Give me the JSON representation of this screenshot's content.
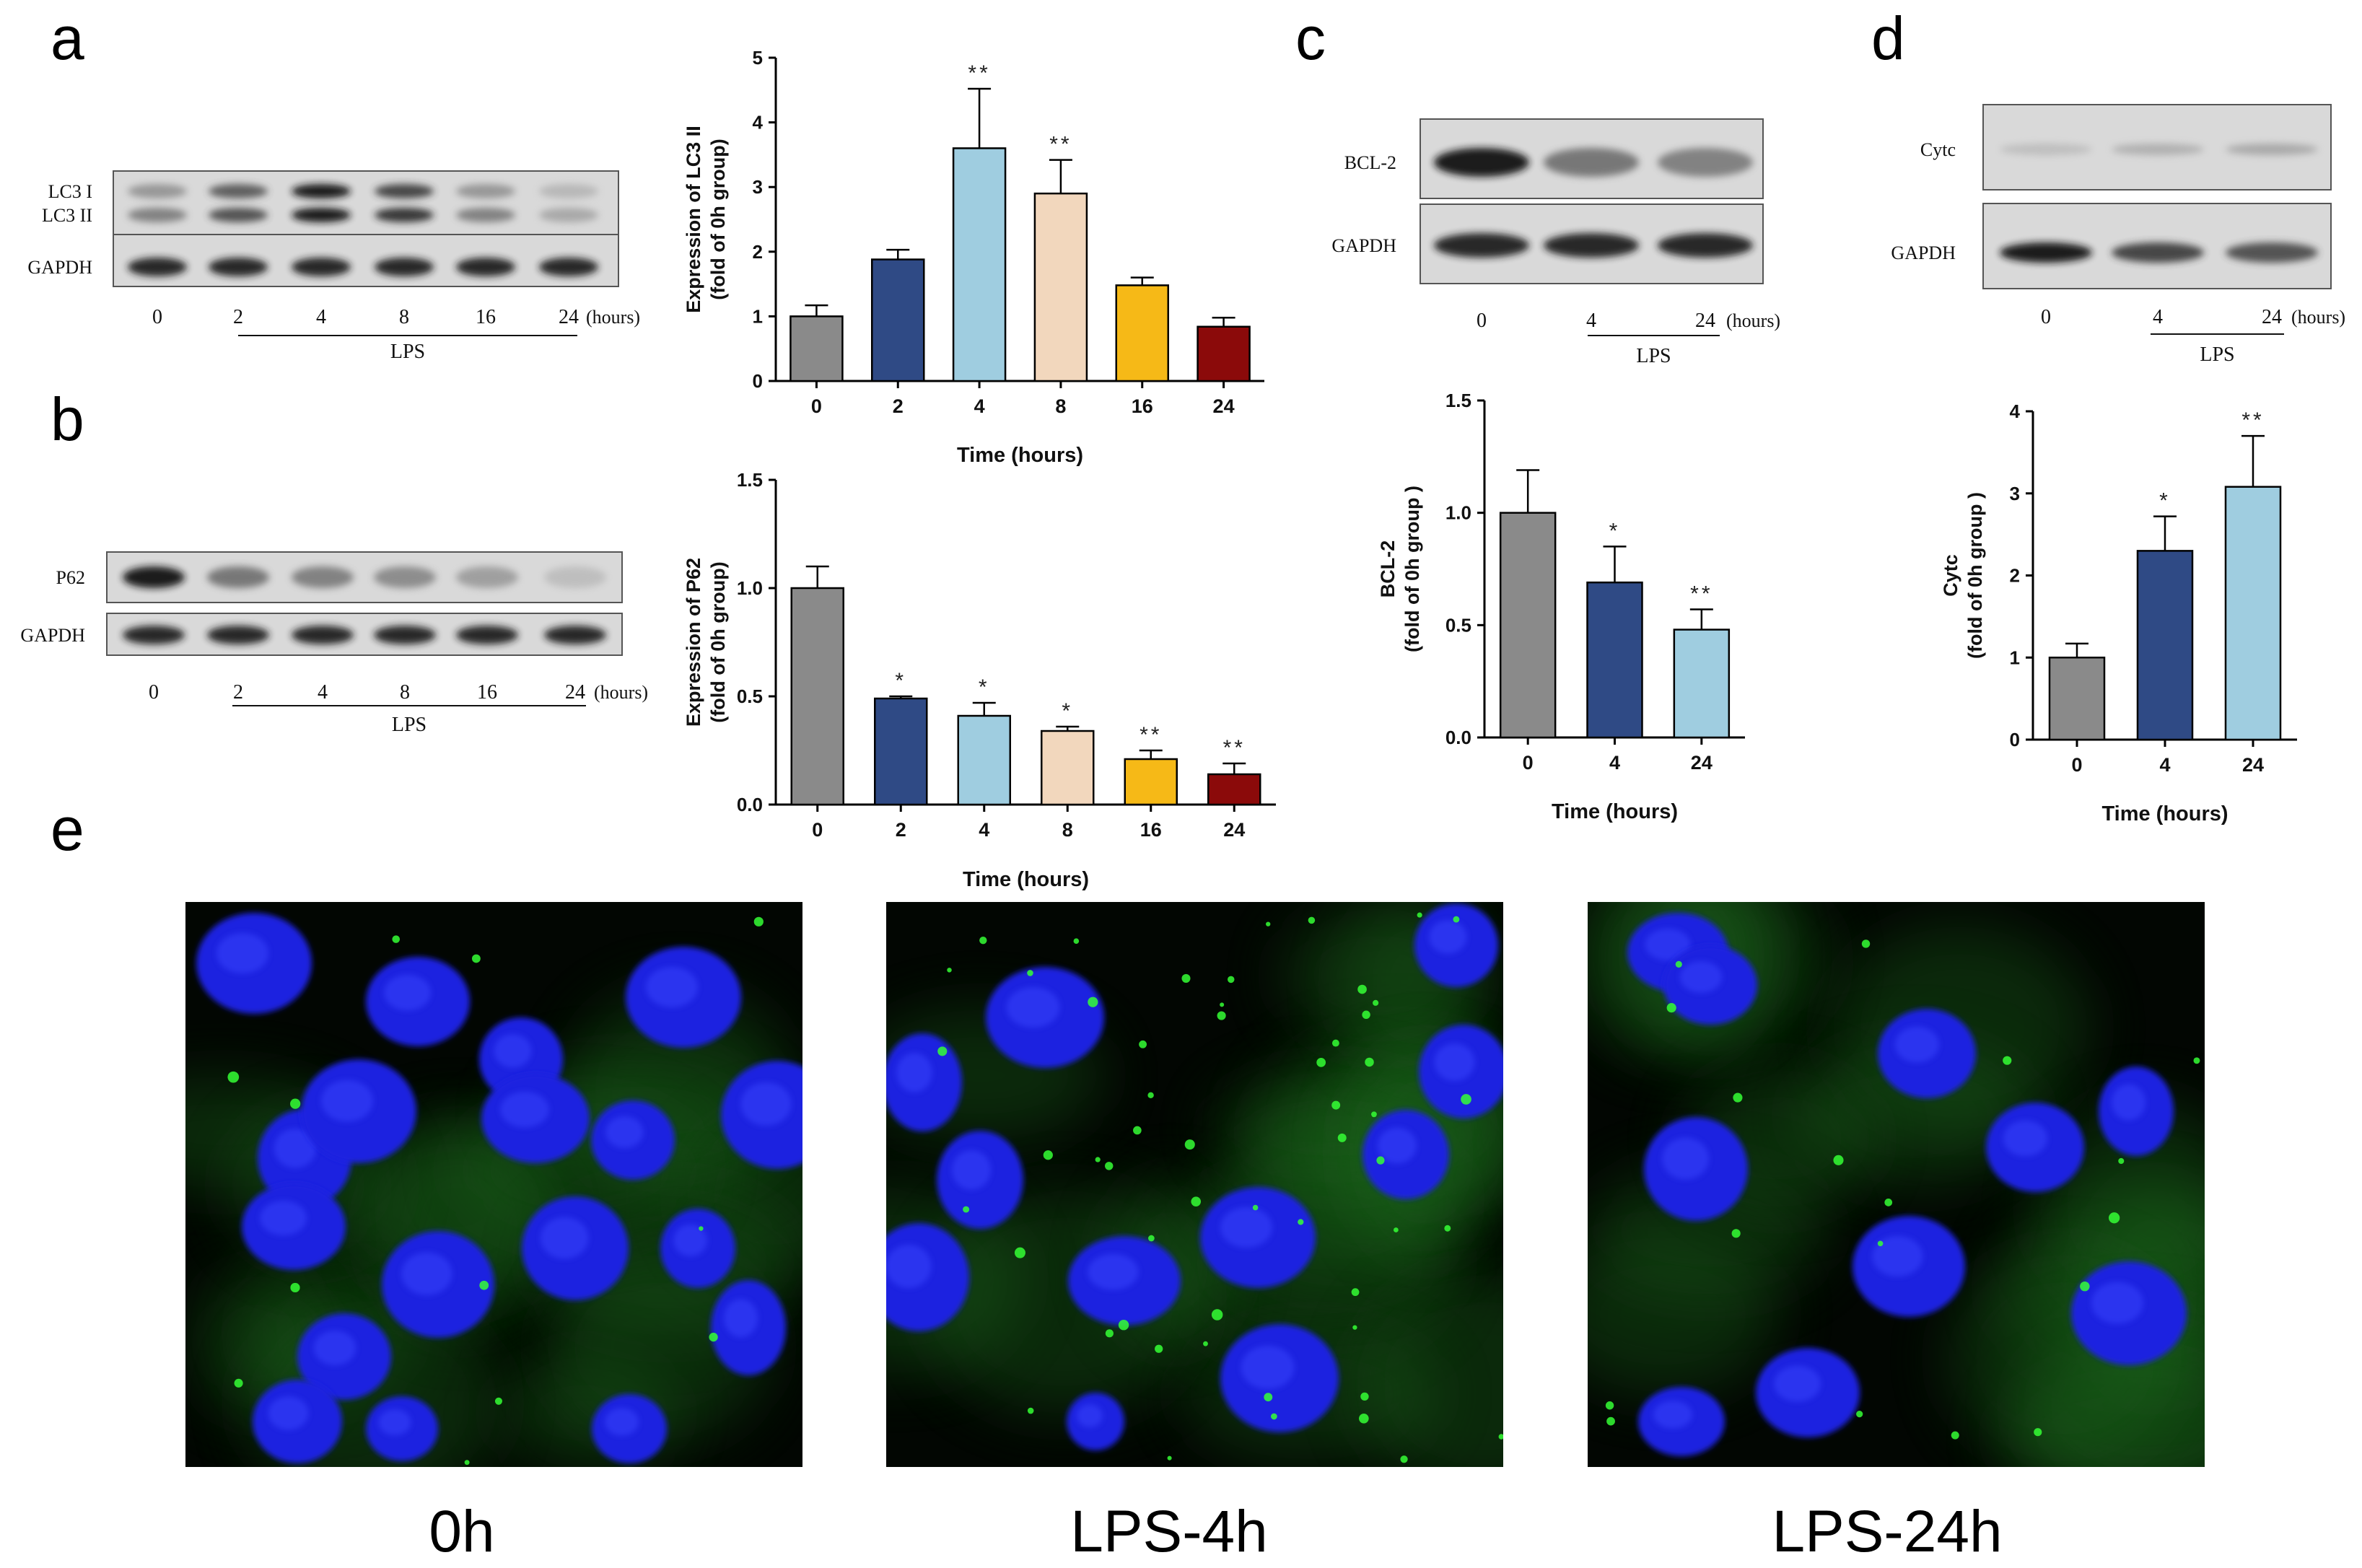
{
  "panels": {
    "a": {
      "letter": "a",
      "blot": {
        "bands": [
          "LC3 I",
          "LC3 II",
          "GAPDH"
        ],
        "lanes": [
          "0",
          "2",
          "4",
          "8",
          "16",
          "24"
        ],
        "unit": "(hours)",
        "treatment": "LPS",
        "band_intensity": {
          "LC3 I": [
            0.45,
            0.7,
            0.95,
            0.8,
            0.45,
            0.25
          ],
          "LC3 II": [
            0.55,
            0.75,
            0.95,
            0.85,
            0.55,
            0.35
          ],
          "GAPDH": [
            0.9,
            0.9,
            0.9,
            0.9,
            0.9,
            0.9
          ]
        }
      }
    },
    "b": {
      "letter": "b",
      "blot": {
        "bands": [
          "P62",
          "GAPDH"
        ],
        "lanes": [
          "0",
          "2",
          "4",
          "8",
          "16",
          "24"
        ],
        "unit": "(hours)",
        "treatment": "LPS",
        "band_intensity": {
          "P62": [
            0.95,
            0.6,
            0.55,
            0.5,
            0.4,
            0.2
          ],
          "GAPDH": [
            0.9,
            0.9,
            0.9,
            0.9,
            0.9,
            0.9
          ]
        }
      }
    },
    "c": {
      "letter": "c",
      "blot": {
        "bands": [
          "BCL-2",
          "GAPDH"
        ],
        "lanes": [
          "0",
          "4",
          "24"
        ],
        "unit": "(hours)",
        "treatment": "LPS",
        "band_intensity": {
          "BCL-2": [
            0.95,
            0.6,
            0.55
          ],
          "GAPDH": [
            0.9,
            0.9,
            0.9
          ]
        }
      }
    },
    "d": {
      "letter": "d",
      "blot": {
        "bands": [
          "Cytc",
          "GAPDH"
        ],
        "lanes": [
          "0",
          "4",
          "24"
        ],
        "unit": "(hours)",
        "treatment": "LPS",
        "band_intensity": {
          "Cytc": [
            0.2,
            0.3,
            0.35
          ],
          "GAPDH": [
            0.95,
            0.8,
            0.75
          ]
        }
      }
    },
    "e": {
      "letter": "e",
      "images": [
        {
          "label": "0h"
        },
        {
          "label": "LPS-4h"
        },
        {
          "label": "LPS-24h"
        }
      ]
    }
  },
  "chart_data": [
    {
      "id": "lc3",
      "type": "bar",
      "categories": [
        "0",
        "2",
        "4",
        "8",
        "16",
        "24"
      ],
      "values": [
        1.0,
        1.88,
        3.6,
        2.9,
        1.48,
        0.84
      ],
      "errors": [
        0.17,
        0.15,
        0.92,
        0.52,
        0.12,
        0.14
      ],
      "significance": [
        "",
        "",
        "**",
        "**",
        "",
        ""
      ],
      "colors": [
        "#8a8a8a",
        "#2f4a85",
        "#9fcde0",
        "#f2d7bd",
        "#f6b917",
        "#8b0a0a"
      ],
      "ylim": [
        0,
        5
      ],
      "yticks": [
        "0",
        "1",
        "2",
        "3",
        "4",
        "5"
      ],
      "ylabel": [
        "Expression of LC3 II",
        "(fold of 0h group)"
      ],
      "xlabel": "Time (hours)"
    },
    {
      "id": "p62",
      "type": "bar",
      "categories": [
        "0",
        "2",
        "4",
        "8",
        "16",
        "24"
      ],
      "values": [
        1.0,
        0.49,
        0.41,
        0.34,
        0.21,
        0.14
      ],
      "errors": [
        0.1,
        0.01,
        0.06,
        0.02,
        0.04,
        0.05
      ],
      "significance": [
        "",
        "*",
        "*",
        "*",
        "**",
        "**"
      ],
      "colors": [
        "#8a8a8a",
        "#2f4a85",
        "#9fcde0",
        "#f2d7bd",
        "#f6b917",
        "#8b0a0a"
      ],
      "ylim": [
        0,
        1.5
      ],
      "yticks": [
        "0.0",
        "0.5",
        "1.0",
        "1.5"
      ],
      "ylabel": [
        "Expression of P62",
        "(fold of 0h group)"
      ],
      "xlabel": "Time (hours)"
    },
    {
      "id": "bcl2",
      "type": "bar",
      "categories": [
        "0",
        "4",
        "24"
      ],
      "values": [
        1.0,
        0.69,
        0.48
      ],
      "errors": [
        0.19,
        0.16,
        0.09
      ],
      "significance": [
        "",
        "*",
        "**"
      ],
      "colors": [
        "#8a8a8a",
        "#2f4a85",
        "#9fcde0"
      ],
      "ylim": [
        0,
        1.5
      ],
      "yticks": [
        "0.0",
        "0.5",
        "1.0",
        "1.5"
      ],
      "ylabel": [
        "BCL-2",
        "(fold of 0h group )"
      ],
      "xlabel": "Time (hours)"
    },
    {
      "id": "cytc",
      "type": "bar",
      "categories": [
        "0",
        "4",
        "24"
      ],
      "values": [
        1.0,
        2.3,
        3.08
      ],
      "errors": [
        0.17,
        0.42,
        0.62
      ],
      "significance": [
        "",
        "*",
        "**"
      ],
      "colors": [
        "#8a8a8a",
        "#2f4a85",
        "#9fcde0"
      ],
      "ylim": [
        0,
        4
      ],
      "yticks": [
        "0",
        "1",
        "2",
        "3",
        "4"
      ],
      "ylabel": [
        "Cytc",
        "(fold of 0h group )"
      ],
      "xlabel": "Time (hours)"
    }
  ]
}
